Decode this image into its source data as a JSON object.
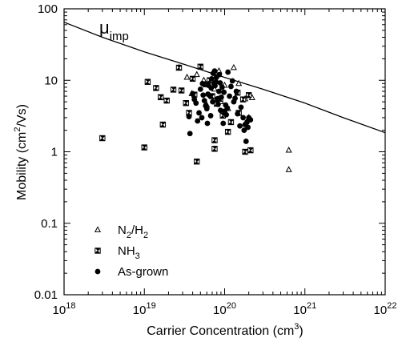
{
  "chart_data": {
    "type": "scatter",
    "xscale": "log",
    "yscale": "log",
    "xlim": [
      1e+18,
      1e+22
    ],
    "ylim": [
      0.01,
      100
    ],
    "xlabel": "Carrier Concentration (cm",
    "xlabel_sup": "3",
    "xlabel_end": ")",
    "ylabel": "Mobility (cm",
    "ylabel_sup": "2",
    "ylabel_end": "/Vs)",
    "x_ticks": [
      {
        "value": 1e+18,
        "base": "10",
        "exp": "18"
      },
      {
        "value": 1e+19,
        "base": "10",
        "exp": "19"
      },
      {
        "value": 1e+20,
        "base": "10",
        "exp": "20"
      },
      {
        "value": 1e+21,
        "base": "10",
        "exp": "21"
      },
      {
        "value": 1e+22,
        "base": "10",
        "exp": "22"
      }
    ],
    "y_ticks": [
      {
        "value": 0.01,
        "label": "0.01"
      },
      {
        "value": 0.1,
        "label": "0.1"
      },
      {
        "value": 1,
        "label": "1"
      },
      {
        "value": 10,
        "label": "10"
      },
      {
        "value": 100,
        "label": "100"
      }
    ],
    "annotation": {
      "main": "μ",
      "sub": "imp"
    },
    "legend_position": "bottom-left",
    "legend": [
      {
        "marker": "triangle",
        "parts": [
          [
            "N",
            ""
          ],
          [
            "2",
            "sub"
          ],
          [
            "/H",
            ""
          ],
          [
            "2",
            "sub"
          ]
        ]
      },
      {
        "marker": "bowtie",
        "parts": [
          [
            "NH",
            ""
          ],
          [
            "3",
            "sub"
          ]
        ]
      },
      {
        "marker": "circle",
        "parts": [
          [
            "As-grown",
            ""
          ]
        ]
      }
    ],
    "curve": {
      "name": "μimp",
      "x": [
        1e+18,
        3e+18,
        1e+19,
        3e+19,
        1e+20,
        3e+20,
        1e+21,
        3e+21,
        1e+22
      ],
      "y": [
        65,
        40,
        25,
        17,
        11,
        7.5,
        4.8,
        3.0,
        1.85
      ]
    },
    "series": [
      {
        "marker": "triangle",
        "x": [
          6.3e+20,
          6.3e+20,
          2e+20,
          1.3e+20,
          9e+19,
          1.1e+20,
          6e+19,
          5.5e+19,
          3.4e+19,
          1e+20,
          7.5e+19,
          1.8e+20,
          2.2e+20,
          1.5e+20,
          8.5e+19,
          4.5e+19,
          3.9e+19,
          2.7e+19
        ],
        "y": [
          1.05,
          0.56,
          3.0,
          15.0,
          5.0,
          4.0,
          4.5,
          10.0,
          11.0,
          8.5,
          7.5,
          5.5,
          5.7,
          9.0,
          13.5,
          12.0,
          6.5,
          15.0
        ]
      },
      {
        "marker": "bowtie",
        "x": [
          3e+18,
          1e+19,
          1.7e+19,
          4.5e+19,
          7.5e+19,
          7.5e+19,
          1.1e+20,
          1.8e+20,
          2.1e+20,
          1.5e+20,
          1.6e+19,
          2.3e+19,
          2.7e+19,
          5e+19,
          6.5e+19,
          4.2e+19,
          3.6e+19,
          9.5e+19,
          1.2e+20,
          2e+20,
          1.45e+20,
          1.4e+19,
          1.1e+19,
          1.9e+19,
          4e+19,
          7e+19,
          8e+19,
          2.9e+19,
          3.3e+19,
          8.8e+19,
          5.8e+19,
          1.7e+20
        ],
        "y": [
          1.55,
          1.15,
          2.4,
          0.73,
          1.45,
          1.1,
          1.9,
          1.0,
          1.05,
          3.5,
          5.8,
          7.4,
          15.0,
          15.5,
          10.0,
          6.3,
          3.5,
          3.2,
          2.6,
          6.2,
          6.7,
          7.8,
          9.5,
          5.2,
          10.5,
          6.0,
          4.7,
          7.2,
          4.8,
          5.5,
          8.8,
          5.4
        ]
      },
      {
        "marker": "circle",
        "x": [
          3.7e+19,
          4e+19,
          4.4e+19,
          4.8e+19,
          5e+19,
          5.3e+19,
          5.6e+19,
          6e+19,
          6.3e+19,
          6.6e+19,
          6.9e+19,
          7.2e+19,
          7.5e+19,
          7.8e+19,
          8.1e+19,
          8.5e+19,
          8.9e+19,
          9.3e+19,
          9.8e+19,
          1.03e+20,
          1.1e+20,
          1.2e+20,
          1.3e+20,
          1.45e+20,
          1.6e+20,
          1.8e+20,
          1.95e+20,
          2.1e+20,
          4.6e+19,
          5.2e+19,
          5.8e+19,
          6.2e+19,
          6.8e+19,
          7.4e+19,
          7.9e+19,
          8.6e+19,
          9.1e+19,
          9.6e+19,
          1.05e+20,
          1.15e+20,
          1.25e+20,
          1.4e+20,
          1.7e+20,
          1.85e+20,
          4.2e+19,
          5.4e+19,
          6.1e+19,
          6.7e+19,
          7.1e+19,
          7.6e+19,
          8.3e+19,
          8.8e+19,
          1e+20,
          1.08e+20,
          1.35e+20,
          1.55e+20,
          2e+20,
          3.6e+19,
          1.75e+20,
          1.9e+20
        ],
        "y": [
          1.8,
          6.5,
          4.8,
          3.5,
          7.5,
          9.0,
          5.2,
          4.0,
          8.5,
          6.0,
          10.5,
          12.5,
          13.5,
          9.5,
          5.5,
          7.0,
          3.8,
          8.0,
          6.8,
          4.5,
          13.0,
          8.2,
          5.0,
          3.4,
          4.2,
          2.4,
          2.2,
          2.8,
          2.7,
          3.0,
          4.4,
          6.4,
          7.8,
          9.0,
          11.0,
          12.0,
          5.8,
          2.5,
          3.3,
          6.0,
          9.8,
          7.0,
          3.0,
          1.4,
          5.4,
          6.2,
          2.5,
          3.2,
          5.0,
          8.4,
          4.6,
          9.2,
          3.7,
          4.1,
          5.6,
          2.3,
          3.0,
          3.1,
          2.0,
          2.6
        ]
      }
    ]
  }
}
